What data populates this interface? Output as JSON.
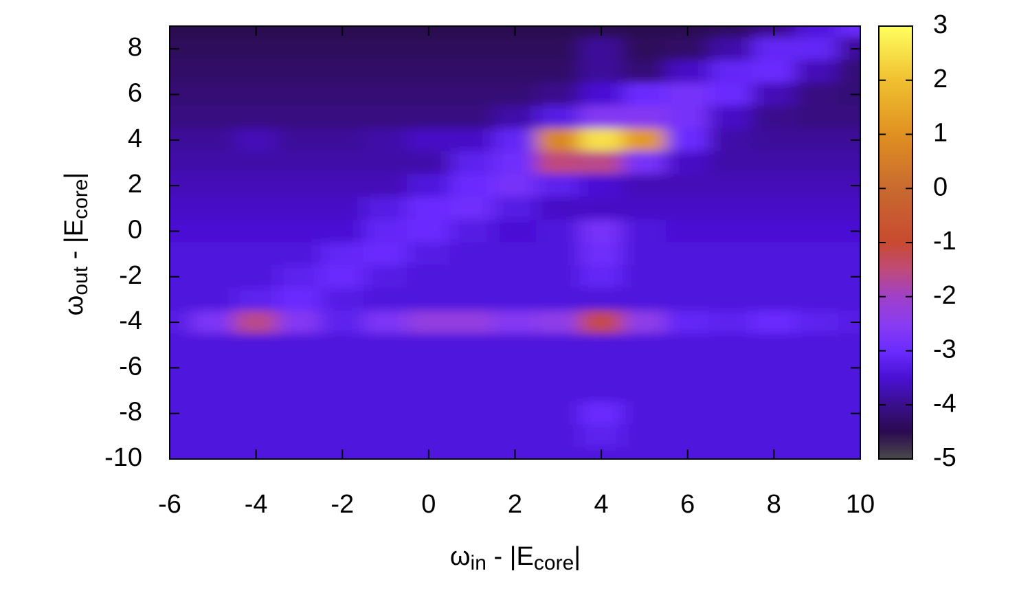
{
  "chart_data": {
    "type": "heatmap",
    "xlabel_parts": [
      "ω",
      "in",
      " - |E",
      "core",
      "|"
    ],
    "ylabel_parts": [
      "ω",
      "out",
      " - |E",
      "core",
      "|"
    ],
    "x": [
      -6,
      -5,
      -4,
      -3,
      -2,
      -1,
      0,
      1,
      2,
      3,
      4,
      5,
      6,
      7,
      8,
      9,
      10
    ],
    "y": [
      9,
      8,
      7,
      6,
      5,
      4,
      3,
      2,
      1,
      0,
      -1,
      -2,
      -3,
      -4,
      -5,
      -6,
      -7,
      -8,
      -9,
      -10
    ],
    "z": [
      [
        -4.5,
        -4.5,
        -4.5,
        -4.5,
        -4.5,
        -4.5,
        -4.5,
        -4.5,
        -4.5,
        -4.5,
        -4.5,
        -4.5,
        -4.5,
        -4.4,
        -4.0,
        -3.4,
        -3.0
      ],
      [
        -4.4,
        -4.4,
        -4.4,
        -4.4,
        -4.4,
        -4.4,
        -4.4,
        -4.4,
        -4.4,
        -4.4,
        -3.9,
        -4.4,
        -4.3,
        -3.8,
        -3.1,
        -3.1,
        -3.9
      ],
      [
        -4.3,
        -4.3,
        -4.3,
        -4.3,
        -4.3,
        -4.3,
        -4.3,
        -4.3,
        -4.3,
        -4.3,
        -3.9,
        -4.2,
        -3.6,
        -3.1,
        -3.0,
        -3.7,
        -4.2
      ],
      [
        -4.2,
        -4.2,
        -4.2,
        -4.2,
        -4.2,
        -4.2,
        -4.2,
        -4.2,
        -4.2,
        -4.0,
        -3.5,
        -3.0,
        -2.8,
        -3.0,
        -3.7,
        -4.1,
        -4.2
      ],
      [
        -4.1,
        -4.1,
        -4.1,
        -4.1,
        -4.1,
        -4.1,
        -4.1,
        -4.1,
        -3.8,
        -3.3,
        -2.6,
        -2.6,
        -2.8,
        -3.6,
        -4.0,
        -4.1,
        -4.1
      ],
      [
        -3.9,
        -3.9,
        -3.7,
        -3.9,
        -3.9,
        -3.8,
        -3.6,
        -3.6,
        -3.1,
        0.8,
        2.5,
        1.2,
        -3.0,
        -3.8,
        -3.9,
        -3.9,
        -3.9
      ],
      [
        -3.8,
        -3.8,
        -3.8,
        -3.8,
        -3.8,
        -3.8,
        -3.8,
        -3.2,
        -2.9,
        -1.5,
        -1.6,
        -2.8,
        -3.6,
        -3.8,
        -3.8,
        -3.8,
        -3.8
      ],
      [
        -3.7,
        -3.7,
        -3.7,
        -3.7,
        -3.7,
        -3.7,
        -3.4,
        -3.0,
        -2.8,
        -3.2,
        -3.5,
        -3.7,
        -3.7,
        -3.7,
        -3.7,
        -3.7,
        -3.7
      ],
      [
        -3.6,
        -3.6,
        -3.6,
        -3.6,
        -3.6,
        -3.3,
        -3.0,
        -2.9,
        -3.3,
        -3.6,
        -3.6,
        -3.6,
        -3.6,
        -3.6,
        -3.6,
        -3.6,
        -3.6
      ],
      [
        -3.5,
        -3.5,
        -3.5,
        -3.5,
        -3.5,
        -3.1,
        -3.0,
        -3.3,
        -3.5,
        -3.4,
        -2.8,
        -3.4,
        -3.5,
        -3.5,
        -3.5,
        -3.5,
        -3.5
      ],
      [
        -3.4,
        -3.4,
        -3.4,
        -3.4,
        -3.1,
        -3.0,
        -3.3,
        -3.4,
        -3.4,
        -3.4,
        -2.9,
        -3.4,
        -3.4,
        -3.4,
        -3.4,
        -3.4,
        -3.4
      ],
      [
        -3.4,
        -3.4,
        -3.4,
        -3.2,
        -3.0,
        -3.3,
        -3.4,
        -3.4,
        -3.4,
        -3.4,
        -3.1,
        -3.4,
        -3.4,
        -3.4,
        -3.4,
        -3.4,
        -3.4
      ],
      [
        -3.4,
        -3.4,
        -3.2,
        -3.0,
        -3.3,
        -3.4,
        -3.4,
        -3.4,
        -3.4,
        -3.4,
        -3.4,
        -3.4,
        -3.4,
        -3.4,
        -3.4,
        -3.4,
        -3.4
      ],
      [
        -3.3,
        -2.7,
        -1.6,
        -2.6,
        -3.2,
        -2.7,
        -2.3,
        -2.3,
        -2.6,
        -2.4,
        -1.2,
        -2.4,
        -3.1,
        -3.2,
        -3.0,
        -3.2,
        -3.3
      ],
      [
        -3.4,
        -3.4,
        -3.4,
        -3.4,
        -3.4,
        -3.4,
        -3.4,
        -3.4,
        -3.4,
        -3.4,
        -3.4,
        -3.4,
        -3.4,
        -3.4,
        -3.4,
        -3.4,
        -3.4
      ],
      [
        -3.4,
        -3.4,
        -3.4,
        -3.4,
        -3.4,
        -3.4,
        -3.4,
        -3.4,
        -3.4,
        -3.4,
        -3.4,
        -3.4,
        -3.4,
        -3.4,
        -3.4,
        -3.4,
        -3.4
      ],
      [
        -3.4,
        -3.4,
        -3.4,
        -3.4,
        -3.4,
        -3.4,
        -3.4,
        -3.4,
        -3.4,
        -3.4,
        -3.4,
        -3.4,
        -3.4,
        -3.4,
        -3.4,
        -3.4,
        -3.4
      ],
      [
        -3.4,
        -3.4,
        -3.4,
        -3.4,
        -3.4,
        -3.4,
        -3.4,
        -3.4,
        -3.4,
        -3.4,
        -3.0,
        -3.4,
        -3.4,
        -3.4,
        -3.4,
        -3.4,
        -3.4
      ],
      [
        -3.4,
        -3.4,
        -3.4,
        -3.4,
        -3.4,
        -3.4,
        -3.4,
        -3.4,
        -3.4,
        -3.4,
        -3.2,
        -3.4,
        -3.4,
        -3.4,
        -3.4,
        -3.4,
        -3.4
      ],
      [
        -3.4,
        -3.4,
        -3.4,
        -3.4,
        -3.4,
        -3.4,
        -3.4,
        -3.4,
        -3.4,
        -3.4,
        -3.4,
        -3.4,
        -3.4,
        -3.4,
        -3.4,
        -3.4,
        -3.4
      ]
    ],
    "xlim": [
      -6,
      10
    ],
    "xticks": [
      -6,
      -4,
      -2,
      0,
      2,
      4,
      6,
      8,
      10
    ],
    "ylim": [
      -10,
      9
    ],
    "yticks": [
      -10,
      -8,
      -6,
      -4,
      -2,
      0,
      2,
      4,
      6,
      8
    ],
    "zlim": [
      -5,
      3
    ],
    "zticks": [
      -5,
      -4,
      -3,
      -2,
      -1,
      0,
      1,
      2,
      3
    ],
    "colorscale": [
      [
        -5,
        "#4a4a4a"
      ],
      [
        -4.5,
        "#2c0a50"
      ],
      [
        -4,
        "#3a0f8c"
      ],
      [
        -3.5,
        "#4a10d4"
      ],
      [
        -3,
        "#6a2cff"
      ],
      [
        -2.5,
        "#8a3cf0"
      ],
      [
        -2,
        "#a040c8"
      ],
      [
        -1.5,
        "#c04a7a"
      ],
      [
        -1,
        "#c84a30"
      ],
      [
        0,
        "#c86a30"
      ],
      [
        1,
        "#e09020"
      ],
      [
        2,
        "#f0c030"
      ],
      [
        3,
        "#ffff60"
      ]
    ]
  }
}
